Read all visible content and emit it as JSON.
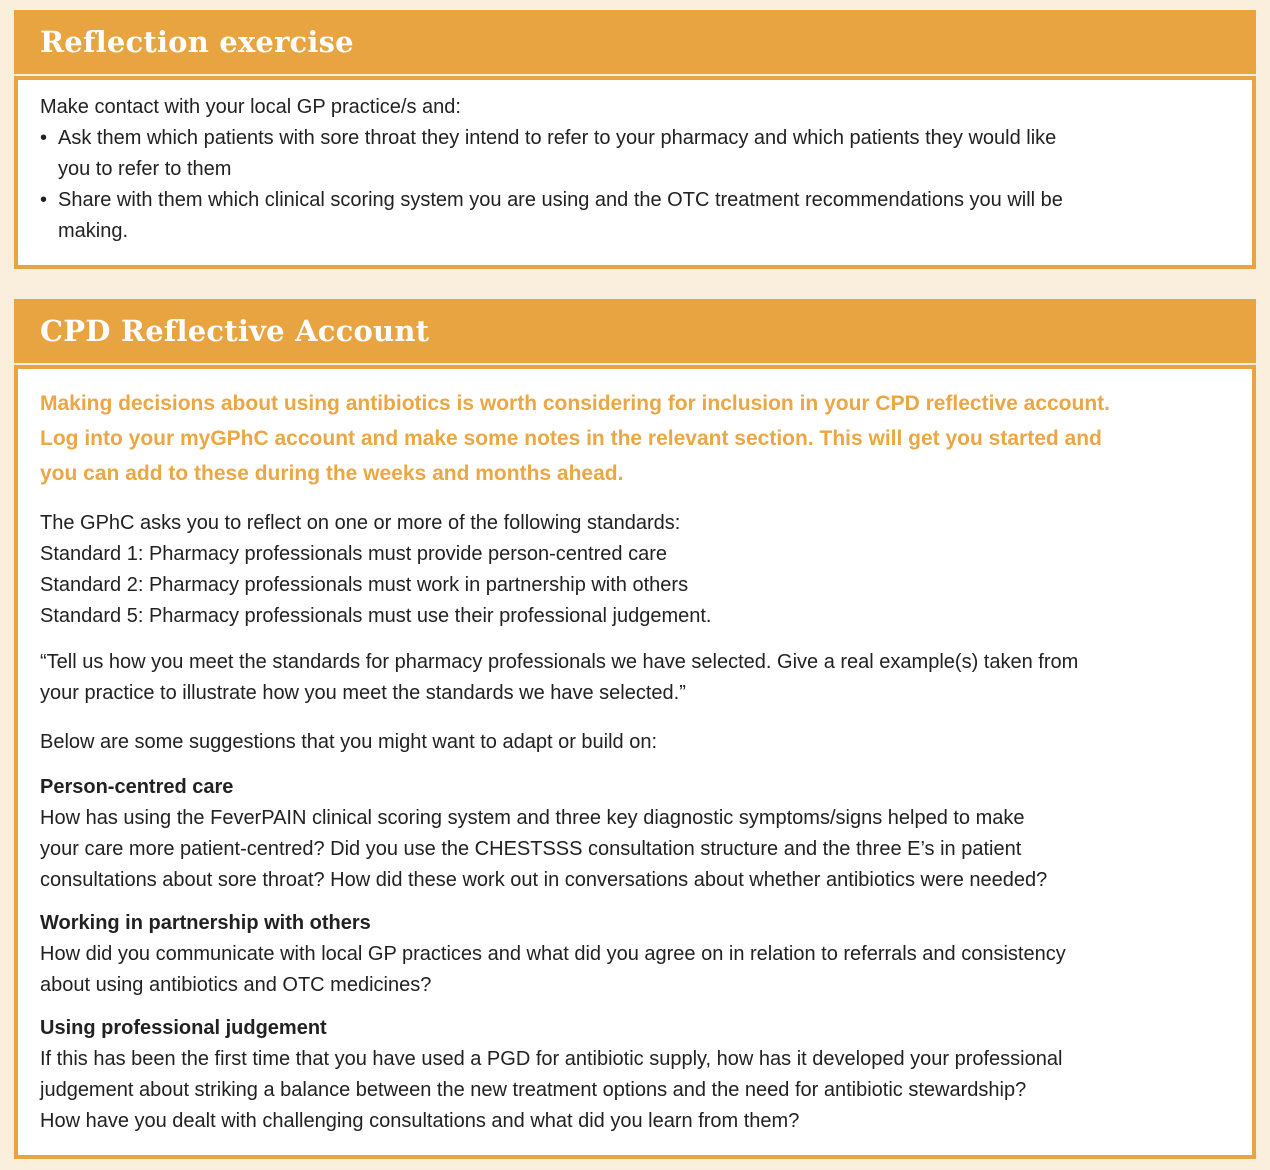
{
  "colors": {
    "page_bg": "#FAEEDD",
    "accent": "#E8A440",
    "accent_text": "#EAA744",
    "body_text": "#212121"
  },
  "reflection_exercise": {
    "title": "Reflection exercise",
    "intro": "Make contact with your local GP practice/s and:",
    "bullet_glyph": "•",
    "bullets": [
      [
        "Ask them which patients with sore throat they intend to refer to your pharmacy and which patients they would like",
        "you to refer to them"
      ],
      [
        "Share with them which clinical scoring system you are using and the OTC treatment recommendations you will be",
        "making."
      ]
    ]
  },
  "cpd_account": {
    "title": "CPD Reflective Account",
    "highlight_lines": [
      "Making decisions about using antibiotics is worth considering for inclusion in your CPD reflective account.",
      "Log into your myGPhC account and make some notes in the relevant section. This will get you started and",
      "you can add to these during the weeks and months ahead."
    ],
    "standards_lines": [
      "The GPhC asks you to reflect on one or more of the following standards:",
      "Standard 1: Pharmacy professionals must provide person-centred care",
      "Standard 2: Pharmacy professionals must work in partnership with others",
      "Standard 5: Pharmacy professionals must use their professional judgement."
    ],
    "quote_lines": [
      "“Tell us how you meet the standards for pharmacy professionals we have selected. Give a real example(s) taken from",
      "your practice to illustrate how you meet the standards we have selected.”"
    ],
    "suggestions_intro": "Below are some suggestions that you might want to adapt or build on:",
    "sections": [
      {
        "heading": "Person-centred care",
        "body_lines": [
          "How has using the FeverPAIN clinical scoring system and three key diagnostic symptoms/signs helped to make",
          "your care more patient-centred? Did you use the CHESTSSS consultation structure and the three E’s in patient",
          "consultations about sore throat? How did these work out in conversations about whether antibiotics were needed?"
        ]
      },
      {
        "heading": "Working in partnership with others",
        "body_lines": [
          "How did you communicate with local GP practices and what did you agree on in relation to referrals and consistency",
          "about using antibiotics and OTC medicines?"
        ]
      },
      {
        "heading": "Using professional judgement",
        "body_lines": [
          "If this has been the first time that you have used a PGD for antibiotic supply, how has it developed your professional",
          "judgement about striking a balance between the new treatment options and the need for antibiotic stewardship?",
          "How have you dealt with challenging consultations and what did you learn from them?"
        ]
      }
    ]
  }
}
